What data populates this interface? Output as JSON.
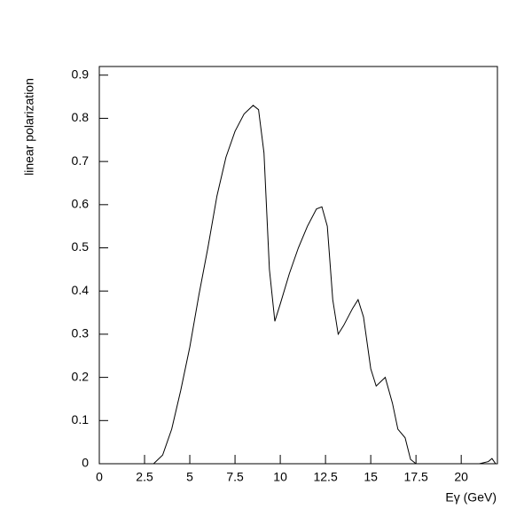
{
  "chart_data": {
    "type": "line",
    "xlabel": "Eγ (GeV)",
    "ylabel": "linear polarization",
    "x": [
      0,
      3,
      3.5,
      4,
      4.5,
      5,
      5.5,
      6,
      6.5,
      7,
      7.5,
      8,
      8.5,
      8.8,
      9.1,
      9.4,
      9.7,
      10,
      10.5,
      11,
      11.5,
      12,
      12.3,
      12.6,
      12.9,
      13.2,
      13.5,
      14,
      14.3,
      14.6,
      15,
      15.3,
      15.8,
      16.2,
      16.5,
      16.9,
      17.2,
      17.5,
      21,
      21.5,
      21.7,
      21.9,
      22
    ],
    "series": [
      {
        "name": "linear polarization",
        "color": "#000000",
        "values": [
          0,
          0,
          0.02,
          0.08,
          0.17,
          0.27,
          0.39,
          0.5,
          0.62,
          0.71,
          0.77,
          0.81,
          0.83,
          0.82,
          0.72,
          0.45,
          0.33,
          0.37,
          0.44,
          0.5,
          0.55,
          0.59,
          0.595,
          0.55,
          0.38,
          0.3,
          0.32,
          0.36,
          0.38,
          0.34,
          0.22,
          0.18,
          0.2,
          0.14,
          0.08,
          0.06,
          0.01,
          0,
          0,
          0.005,
          0.012,
          0,
          0
        ]
      }
    ],
    "xlim": [
      0,
      22
    ],
    "xticks": [
      0,
      2.5,
      5,
      7.5,
      10,
      12.5,
      15,
      17.5,
      20
    ],
    "ylim": [
      0,
      0.92
    ],
    "yticks": [
      0,
      0.1,
      0.2,
      0.3,
      0.4,
      0.5,
      0.6,
      0.7,
      0.8,
      0.9
    ]
  }
}
